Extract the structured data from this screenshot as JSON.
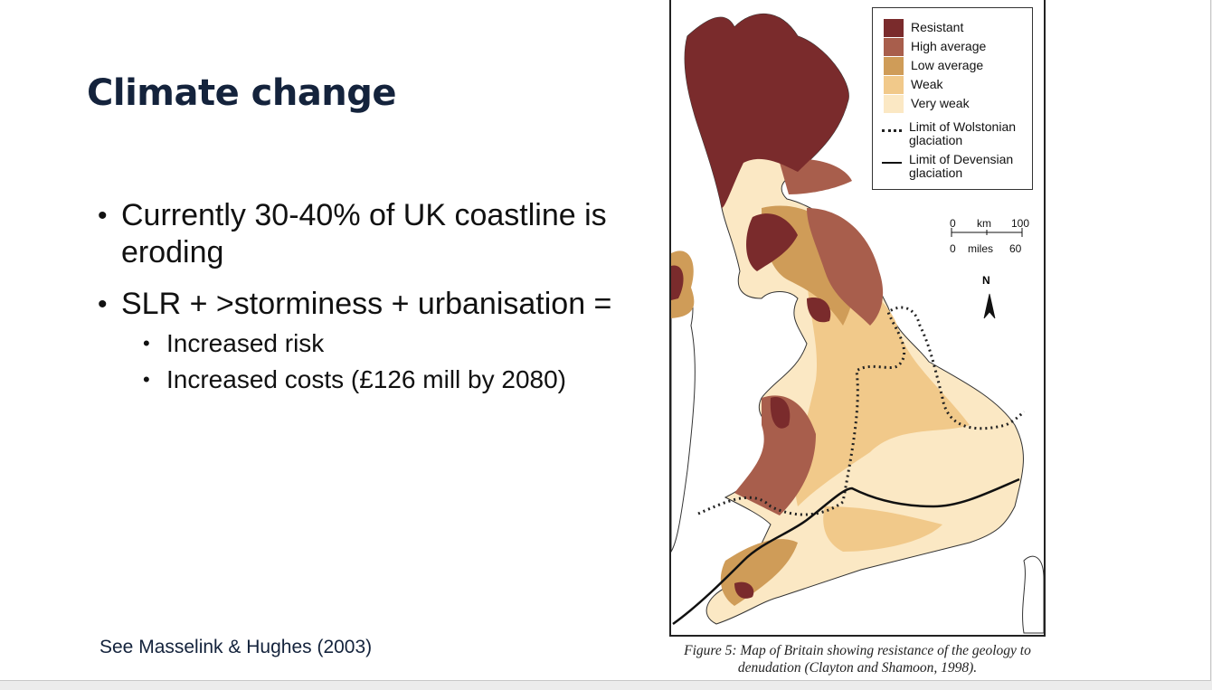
{
  "slide": {
    "title": "Climate change",
    "bullets": [
      "Currently 30-40% of UK coastline is eroding",
      "SLR + >storminess + urbanisation ="
    ],
    "sub_bullets": [
      "Increased risk",
      "Increased costs (£126 mill by 2080)"
    ],
    "reference": "See Masselink & Hughes (2003)"
  },
  "figure": {
    "legend": {
      "items": [
        {
          "label": "Resistant",
          "color": "#7a2b2c"
        },
        {
          "label": "High average",
          "color": "#a85e4c"
        },
        {
          "label": "Low average",
          "color": "#cf9c58"
        },
        {
          "label": "Weak",
          "color": "#f1c98a"
        },
        {
          "label": "Very weak",
          "color": "#fbe8c4"
        }
      ],
      "wolstonian_line1": "Limit of Wolstonian",
      "wolstonian_line2": "glaciation",
      "devensian_line1": "Limit of Devensian",
      "devensian_line2": "glaciation"
    },
    "scale": {
      "km0": "0",
      "km_label": "km",
      "km100": "100",
      "mi0": "0",
      "mi_label": "miles",
      "mi60": "60"
    },
    "north": "N",
    "caption_line1": "Figure 5: Map of Britain showing resistance of the geology to",
    "caption_line2": "denudation (Clayton and Shamoon, 1998)."
  }
}
